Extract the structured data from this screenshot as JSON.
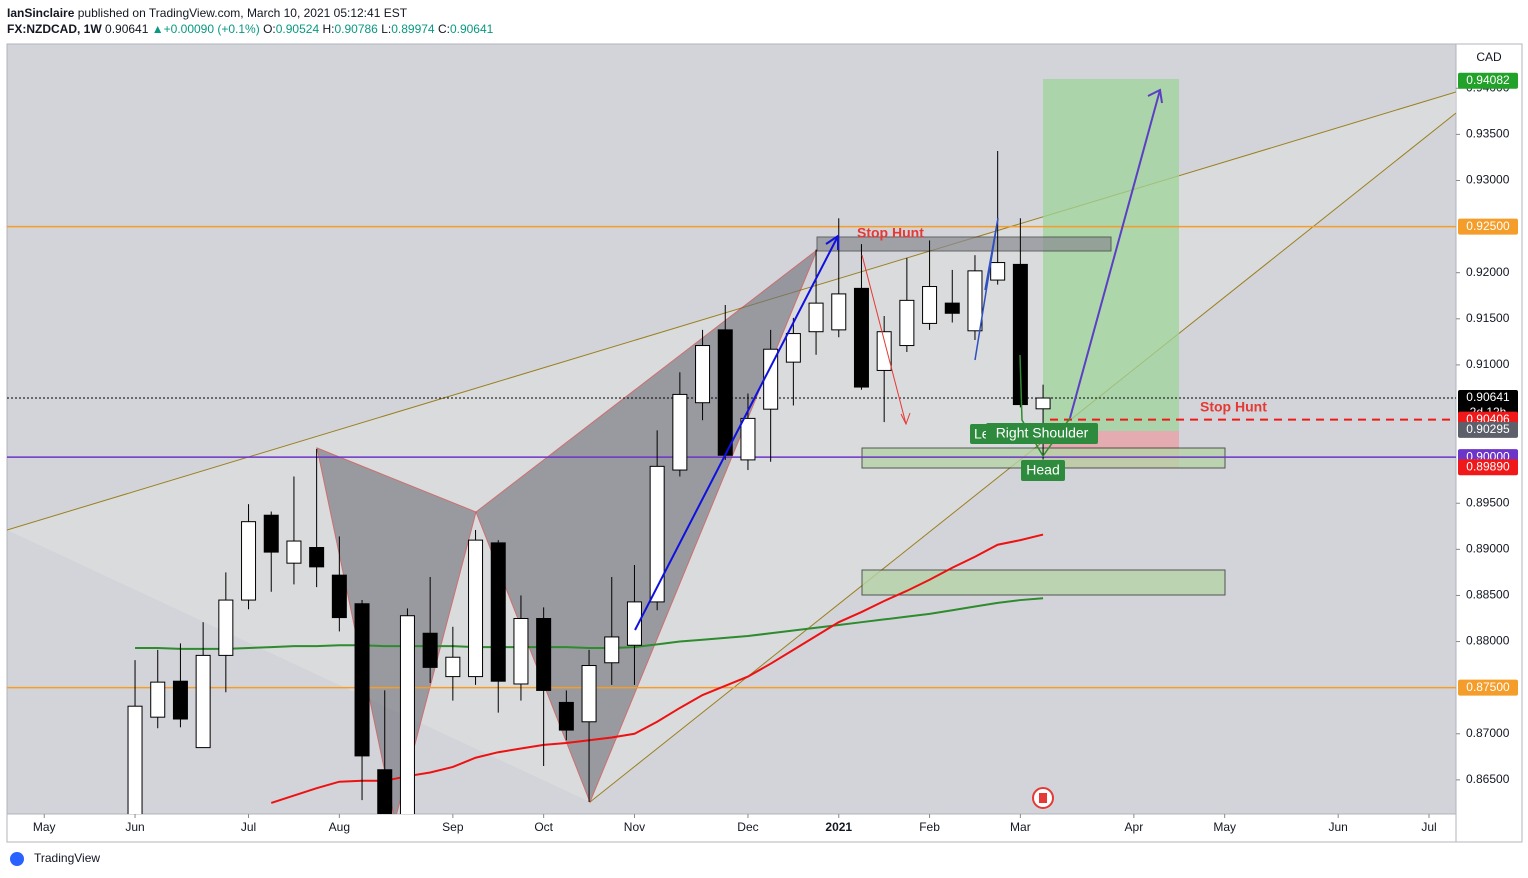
{
  "header": {
    "publisher": "IanSinclaire",
    "published": "published on TradingView.com, March 10, 2021 05:12:41 EST",
    "symbol": "FX:NZDCAD, 1W",
    "change": "+0.00090 (+0.1%)",
    "ohlc_labels": [
      "O:",
      "H:",
      "L:",
      "C:"
    ]
  },
  "chart_data": {
    "type": "candlestick",
    "currency": "CAD",
    "xlim": [
      -5.64,
      58.19
    ],
    "ylim": [
      0.8613,
      0.9448
    ],
    "xticks": [
      {
        "value": -4,
        "label": "May"
      },
      {
        "value": 0,
        "label": "Jun"
      },
      {
        "value": 5,
        "label": "Jul"
      },
      {
        "value": 9,
        "label": "Aug"
      },
      {
        "value": 14,
        "label": "Sep"
      },
      {
        "value": 18,
        "label": "Oct"
      },
      {
        "value": 22,
        "label": "Nov"
      },
      {
        "value": 27,
        "label": "Dec"
      },
      {
        "value": 31,
        "label": "2021"
      },
      {
        "value": 35,
        "label": "Feb"
      },
      {
        "value": 39,
        "label": "Mar"
      },
      {
        "value": 44,
        "label": "Apr"
      },
      {
        "value": 48,
        "label": "May"
      },
      {
        "value": 53,
        "label": "Jun"
      },
      {
        "value": 57,
        "label": "Jul"
      }
    ],
    "yticks": [
      {
        "value": 0.865,
        "label": "0.86500"
      },
      {
        "value": 0.87,
        "label": "0.87000"
      },
      {
        "value": 0.88,
        "label": "0.88000"
      },
      {
        "value": 0.885,
        "label": "0.88500"
      },
      {
        "value": 0.89,
        "label": "0.89000"
      },
      {
        "value": 0.895,
        "label": "0.89500"
      },
      {
        "value": 0.91,
        "label": "0.91000"
      },
      {
        "value": 0.915,
        "label": "0.91500"
      },
      {
        "value": 0.92,
        "label": "0.92000"
      },
      {
        "value": 0.93,
        "label": "0.93000"
      },
      {
        "value": 0.935,
        "label": "0.93500"
      },
      {
        "value": 0.94,
        "label": "0.94000"
      }
    ],
    "open": [
      0.86,
      0.8718,
      0.8757,
      0.8685,
      0.8785,
      0.8845,
      0.8937,
      0.8885,
      0.8902,
      0.8872,
      0.8841,
      0.8661,
      0.858,
      0.8809,
      0.8762,
      0.8762,
      0.8907,
      0.8754,
      0.8825,
      0.8734,
      0.8713,
      0.8777,
      0.8796,
      0.8843,
      0.8986,
      0.9059,
      0.9138,
      0.8997,
      0.9052,
      0.9103,
      0.9136,
      0.9138,
      0.9183,
      0.9094,
      0.9121,
      0.9145,
      0.9167,
      0.9137,
      0.9192,
      0.9209,
      0.90524
    ],
    "high": [
      0.87798,
      0.8791,
      0.8798,
      0.8821,
      0.8875,
      0.8949,
      0.8941,
      0.8979,
      0.9009,
      0.8914,
      0.8845,
      0.8747,
      0.8836,
      0.887,
      0.8816,
      0.8921,
      0.891,
      0.885,
      0.8837,
      0.8747,
      0.8791,
      0.887,
      0.8883,
      0.9029,
      0.9092,
      0.9138,
      0.9165,
      0.9069,
      0.9138,
      0.9151,
      0.9225,
      0.9259,
      0.9231,
      0.9153,
      0.9216,
      0.9235,
      0.9203,
      0.9219,
      0.9332,
      0.9259,
      0.90786
    ],
    "low": [
      0.859,
      0.8706,
      0.8707,
      0.8685,
      0.8745,
      0.8835,
      0.8854,
      0.8862,
      0.8859,
      0.8811,
      0.8628,
      0.858,
      0.857,
      0.8755,
      0.8736,
      0.8753,
      0.8723,
      0.8736,
      0.8665,
      0.8693,
      0.8626,
      0.8753,
      0.8753,
      0.8834,
      0.8979,
      0.904,
      0.8997,
      0.8986,
      0.8995,
      0.9056,
      0.9111,
      0.913,
      0.9073,
      0.9038,
      0.9114,
      0.9138,
      0.9146,
      0.9127,
      0.9187,
      0.9054,
      0.89974
    ],
    "close": [
      0.87299,
      0.8756,
      0.8716,
      0.8785,
      0.8845,
      0.893,
      0.8897,
      0.8909,
      0.8881,
      0.8826,
      0.8676,
      0.859,
      0.8828,
      0.8772,
      0.8783,
      0.891,
      0.8757,
      0.8825,
      0.8747,
      0.8704,
      0.8774,
      0.8805,
      0.8843,
      0.899,
      0.9068,
      0.9121,
      0.9002,
      0.9042,
      0.9117,
      0.9134,
      0.9167,
      0.9177,
      0.9076,
      0.9136,
      0.917,
      0.9185,
      0.9156,
      0.9202,
      0.9211,
      0.9057,
      0.90641
    ],
    "up_color": "#ffffff",
    "down_color": "#000000",
    "overlays": [
      {
        "color": "#2e8b2e",
        "values": [
          0.8793,
          0.8793,
          0.8792,
          0.8792,
          0.8792,
          0.8793,
          0.8794,
          0.8795,
          0.8795,
          0.8796,
          0.8796,
          0.8795,
          0.8795,
          0.8795,
          0.8795,
          0.8794,
          0.8794,
          0.8794,
          0.8794,
          0.8794,
          0.8793,
          0.8793,
          0.8794,
          0.8797,
          0.88,
          0.8802,
          0.8804,
          0.8806,
          0.8809,
          0.8812,
          0.8815,
          0.8818,
          0.8821,
          0.8824,
          0.8827,
          0.883,
          0.8834,
          0.8838,
          0.8842,
          0.8845,
          0.8847
        ]
      },
      {
        "color": "#ee1111",
        "values": [
          null,
          null,
          null,
          null,
          null,
          null,
          0.8625,
          0.8633,
          0.8641,
          0.8648,
          0.8649,
          0.8649,
          0.8654,
          0.8658,
          0.8664,
          0.8674,
          0.868,
          0.8684,
          0.8688,
          0.869,
          0.8693,
          0.8696,
          0.87,
          0.8713,
          0.8728,
          0.8742,
          0.8752,
          0.8762,
          0.8776,
          0.8791,
          0.8806,
          0.8821,
          0.8832,
          0.8844,
          0.8855,
          0.8867,
          0.888,
          0.8892,
          0.8905,
          0.891,
          0.8916
        ]
      }
    ],
    "price_lines": [
      {
        "value": 0.94082,
        "color": "#22a22a",
        "line": "none"
      },
      {
        "value": 0.925,
        "label": "0.92500",
        "color": "#f59d2a",
        "line": "solid"
      },
      {
        "value": 0.90641,
        "color": "#000000",
        "line": "dotted"
      },
      {
        "value": 0.90406,
        "color": "#f01818",
        "line": "none"
      },
      {
        "value": 0.90295,
        "color": "#5d606b",
        "line": "none"
      },
      {
        "value": 0.9,
        "label": "0.90000",
        "color": "#6a35c8",
        "line": "solid"
      },
      {
        "value": 0.8989,
        "label": "0.89890",
        "color": "#f01818",
        "line": "none"
      },
      {
        "value": 0.875,
        "label": "0.87500",
        "color": "#f59d2a",
        "line": "solid"
      }
    ],
    "countdown": "2d 12h",
    "annotations": {
      "stop_hunt_top": "Stop Hunt",
      "stop_hunt_right": "Stop Hunt",
      "left_shoulder": "Le",
      "right_shoulder": "Right Shoulder",
      "head": "Head"
    }
  },
  "footer": {
    "brand": "TradingView"
  }
}
